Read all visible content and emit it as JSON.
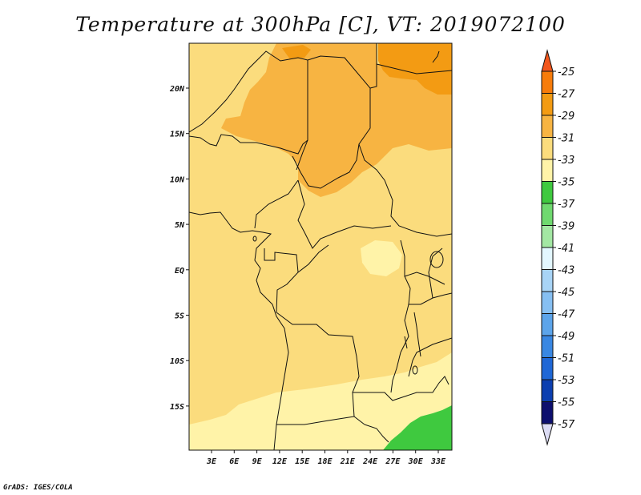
{
  "title": "Temperature at 300hPa [C], VT: 2019072100",
  "credit": "GrADS: IGES/COLA",
  "map": {
    "lon_ticks": [
      "3E",
      "6E",
      "9E",
      "12E",
      "15E",
      "18E",
      "21E",
      "24E",
      "27E",
      "30E",
      "33E"
    ],
    "lat_ticks": [
      "20N",
      "15N",
      "10N",
      "5N",
      "EQ",
      "5S",
      "10S",
      "15S"
    ],
    "colors": {
      "c29_31": "#f7b442",
      "c31_33": "#fbdc7d",
      "c33_35": "#fff3a8",
      "c27_29": "#f39b13",
      "c35_37": "#3fc93f",
      "borders": "#111111"
    }
  },
  "colorbar": {
    "labels": [
      "-25",
      "-27",
      "-29",
      "-31",
      "-33",
      "-35",
      "-37",
      "-39",
      "-41",
      "-43",
      "-45",
      "-47",
      "-49",
      "-51",
      "-53",
      "-55",
      "-57"
    ],
    "colors": [
      "#f2561c",
      "#f77c0a",
      "#f39b13",
      "#f7b442",
      "#fbdc7d",
      "#fff3a8",
      "#3fc93f",
      "#6fd96f",
      "#a3e7a3",
      "#e3f7ff",
      "#a8d4f6",
      "#86bff2",
      "#5ca4ea",
      "#3987e2",
      "#1f67d6",
      "#0c3fb0",
      "#0d0f6e"
    ],
    "cap_top_color": "#f2561c",
    "cap_bottom_color": "#dcdcf4"
  }
}
